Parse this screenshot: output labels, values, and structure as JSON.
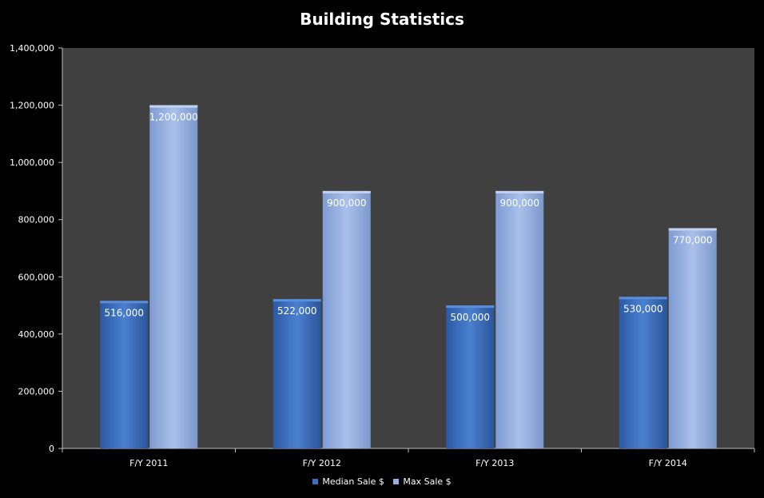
{
  "chart_data": {
    "type": "bar",
    "title": "Building Statistics",
    "categories": [
      "F/Y 2011",
      "F/Y 2012",
      "F/Y 2013",
      "F/Y 2014"
    ],
    "series": [
      {
        "name": "Median Sale $",
        "values": [
          516000,
          522000,
          500000,
          530000
        ],
        "labels": [
          "516,000",
          "522,000",
          "500,000",
          "530,000"
        ],
        "color": "#3a6fc0"
      },
      {
        "name": "Max Sale $",
        "values": [
          1200000,
          900000,
          900000,
          770000
        ],
        "labels": [
          "1,200,000",
          "900,000",
          "900,000",
          "770,000"
        ],
        "color": "#94aee0"
      }
    ],
    "ylim": [
      0,
      1400000
    ],
    "yticks": [
      0,
      200000,
      400000,
      600000,
      800000,
      1000000,
      1200000,
      1400000
    ],
    "ytick_labels": [
      "0",
      "200,000",
      "400,000",
      "600,000",
      "800,000",
      "1,000,000",
      "1,200,000",
      "1,400,000"
    ],
    "xlabel": "",
    "ylabel": "",
    "grid": false,
    "legend_position": "bottom",
    "background": "#000000",
    "plot_background": "#404040"
  }
}
